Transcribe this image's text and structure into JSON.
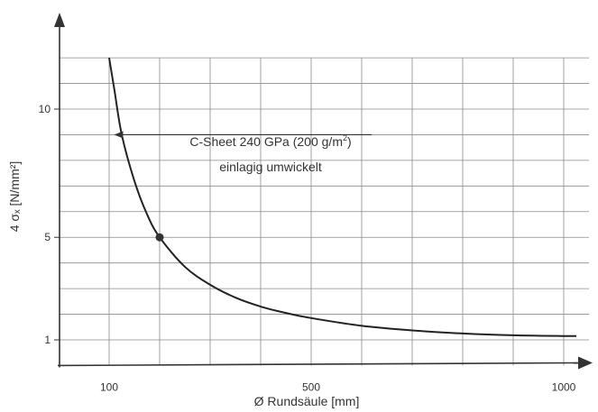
{
  "chart_data": {
    "type": "line",
    "title": "",
    "xlabel": "Ø Rundsäule [mm]",
    "ylabel": "4 σₓ [N/mm²]",
    "xlim": [
      0,
      1100
    ],
    "ylim": [
      0,
      12.5
    ],
    "grid": true,
    "x_ticks": [
      {
        "value": 100,
        "label": "100"
      },
      {
        "value": 500,
        "label": "500"
      },
      {
        "value": 1000,
        "label": "1000"
      }
    ],
    "y_ticks": [
      {
        "value": 1,
        "label": "1"
      },
      {
        "value": 5,
        "label": "5"
      },
      {
        "value": 10,
        "label": "10"
      }
    ],
    "x_grid": [
      100,
      200,
      300,
      400,
      500,
      600,
      700,
      800,
      900,
      1000
    ],
    "y_grid": [
      1,
      2,
      3,
      4,
      5,
      6,
      7,
      8,
      9,
      10,
      11,
      12
    ],
    "series": [
      {
        "points": [
          [
            100,
            12.0
          ],
          [
            110,
            10.8
          ],
          [
            125,
            9.0
          ],
          [
            150,
            7.2
          ],
          [
            175,
            5.9
          ],
          [
            200,
            5.0
          ],
          [
            250,
            3.85
          ],
          [
            300,
            3.15
          ],
          [
            350,
            2.65
          ],
          [
            400,
            2.3
          ],
          [
            450,
            2.05
          ],
          [
            500,
            1.85
          ],
          [
            600,
            1.55
          ],
          [
            700,
            1.37
          ],
          [
            800,
            1.25
          ],
          [
            900,
            1.18
          ],
          [
            1000,
            1.15
          ],
          [
            1025,
            1.15
          ]
        ]
      }
    ],
    "marker": {
      "x": 200,
      "y": 5.0
    },
    "annotation": {
      "line1_prefix": "C-Sheet 240 GPa (200 g/m",
      "line1_sup": "2",
      "line1_suffix": ")",
      "line2": "einlagig umwickelt",
      "arrow_to": {
        "x": 108,
        "y": 9.0
      }
    },
    "colors": {
      "line": "#222222",
      "grid": "#8a8a8a",
      "axis": "#333333",
      "text": "#333333"
    }
  }
}
